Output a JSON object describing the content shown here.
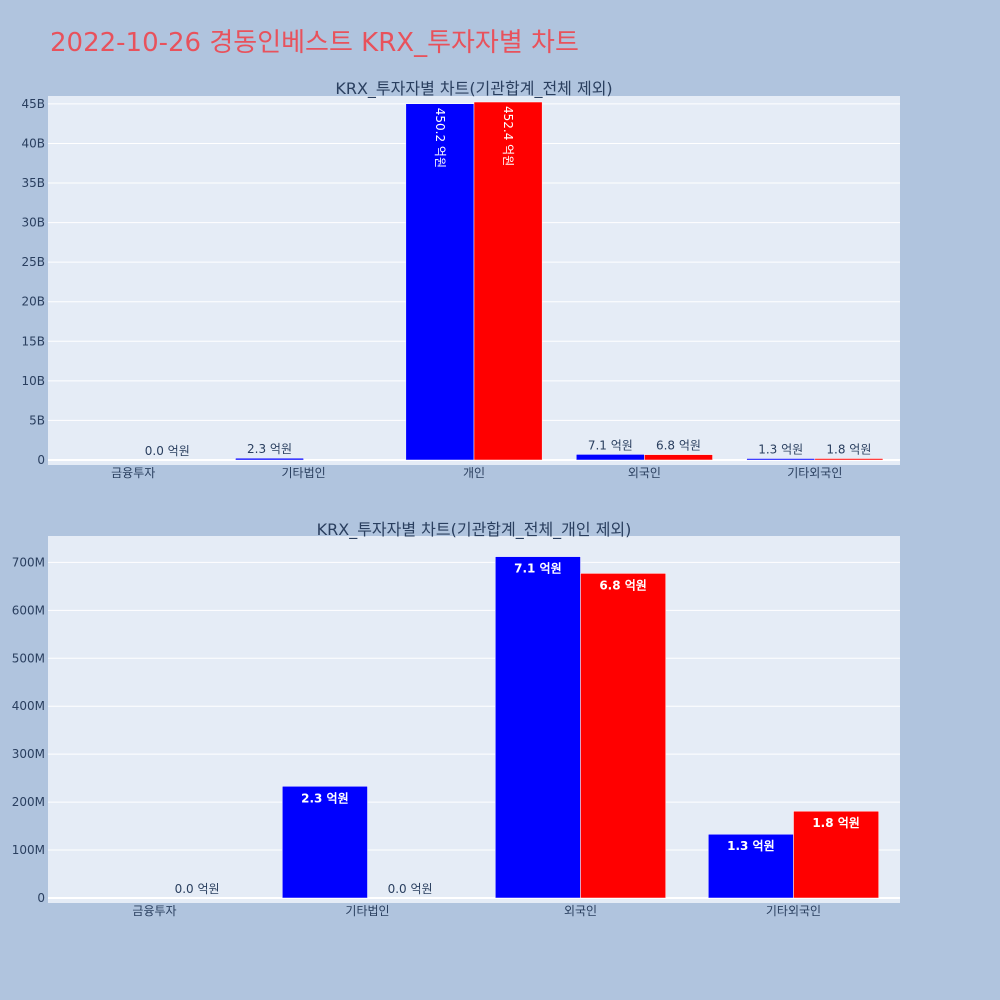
{
  "page": {
    "title": "2022-10-26 경동인베스트 KRX_투자자별 차트"
  },
  "colors": {
    "series_buy": "#0000ff",
    "series_sell": "#ff0000",
    "plot_bg": "#e5ecf6",
    "page_bg": "#b0c4de",
    "title": "#e8525c"
  },
  "chart_data": [
    {
      "type": "bar",
      "title": "KRX_투자자별 차트(기관합계_전체 제외)",
      "categories": [
        "금융투자",
        "기타법인",
        "개인",
        "외국인",
        "기타외국인"
      ],
      "ylim": [
        0,
        46000000000
      ],
      "yticks": [
        0,
        5000000000,
        10000000000,
        15000000000,
        20000000000,
        25000000000,
        30000000000,
        35000000000,
        40000000000,
        45000000000
      ],
      "ytick_labels": [
        "0",
        "5B",
        "10B",
        "15B",
        "20B",
        "25B",
        "30B",
        "35B",
        "40B",
        "45B"
      ],
      "grid": true,
      "series": [
        {
          "values": [
            0,
            230000000,
            45020000000,
            710000000,
            130000000
          ],
          "labels": [
            "",
            "2.3 억원",
            "450.2 억원",
            "7.1 억원",
            "1.3 억원"
          ],
          "label_pos": [
            "outside",
            "outside",
            "inside-rotated",
            "outside",
            "outside"
          ]
        },
        {
          "values": [
            0,
            0,
            45240000000,
            680000000,
            180000000
          ],
          "labels": [
            "0.0 억원",
            "",
            "452.4 억원",
            "6.8 억원",
            "1.8 억원"
          ],
          "label_pos": [
            "outside",
            "outside",
            "inside-rotated",
            "outside",
            "outside"
          ]
        }
      ]
    },
    {
      "type": "bar",
      "title": "KRX_투자자별 차트(기관합계_전체_개인 제외)",
      "categories": [
        "금융투자",
        "기타법인",
        "외국인",
        "기타외국인"
      ],
      "ylim": [
        0,
        755000000
      ],
      "yticks": [
        0,
        100000000,
        200000000,
        300000000,
        400000000,
        500000000,
        600000000,
        700000000
      ],
      "ytick_labels": [
        "0",
        "100M",
        "200M",
        "300M",
        "400M",
        "500M",
        "600M",
        "700M"
      ],
      "grid": true,
      "series": [
        {
          "values": [
            0,
            233000000,
            712000000,
            133000000
          ],
          "labels": [
            "",
            "2.3 억원",
            "7.1 억원",
            "1.3 억원"
          ],
          "label_pos": [
            "outside",
            "inside",
            "inside",
            "inside"
          ]
        },
        {
          "values": [
            0,
            0,
            677000000,
            181000000
          ],
          "labels": [
            "0.0 억원",
            "0.0 억원",
            "6.8 억원",
            "1.8 억원"
          ],
          "label_pos": [
            "outside",
            "outside",
            "inside",
            "inside"
          ]
        }
      ]
    }
  ]
}
